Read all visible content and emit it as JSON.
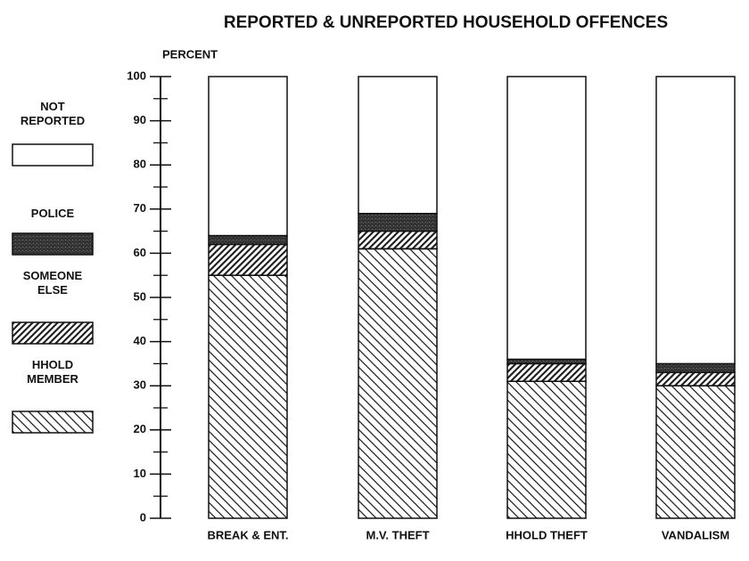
{
  "chart_data": {
    "type": "stacked_bar",
    "title": "REPORTED & UNREPORTED HOUSEHOLD OFFENCES",
    "y_label": "PERCENT",
    "categories": [
      "BREAK & ENT.",
      "M.V. THEFT",
      "HHOLD THEFT",
      "VANDALISM"
    ],
    "series": [
      {
        "name": "HHOLD MEMBER",
        "color": "#222222",
        "pattern": "hatch-back",
        "values": [
          55,
          61,
          31,
          30
        ]
      },
      {
        "name": "SOMEONE ELSE",
        "color": "#222222",
        "pattern": "hatch-forward",
        "values": [
          7,
          4,
          4,
          3
        ]
      },
      {
        "name": "POLICE",
        "color": "#333333",
        "pattern": "solid",
        "values": [
          2,
          4,
          1,
          2
        ]
      },
      {
        "name": "NOT REPORTED",
        "color": "#ffffff",
        "pattern": "none",
        "values": [
          36,
          31,
          64,
          65
        ]
      }
    ],
    "ylim": [
      0,
      100
    ],
    "yticks": [
      0,
      10,
      20,
      30,
      40,
      50,
      60,
      70,
      80,
      90,
      100
    ],
    "legend": "left"
  }
}
